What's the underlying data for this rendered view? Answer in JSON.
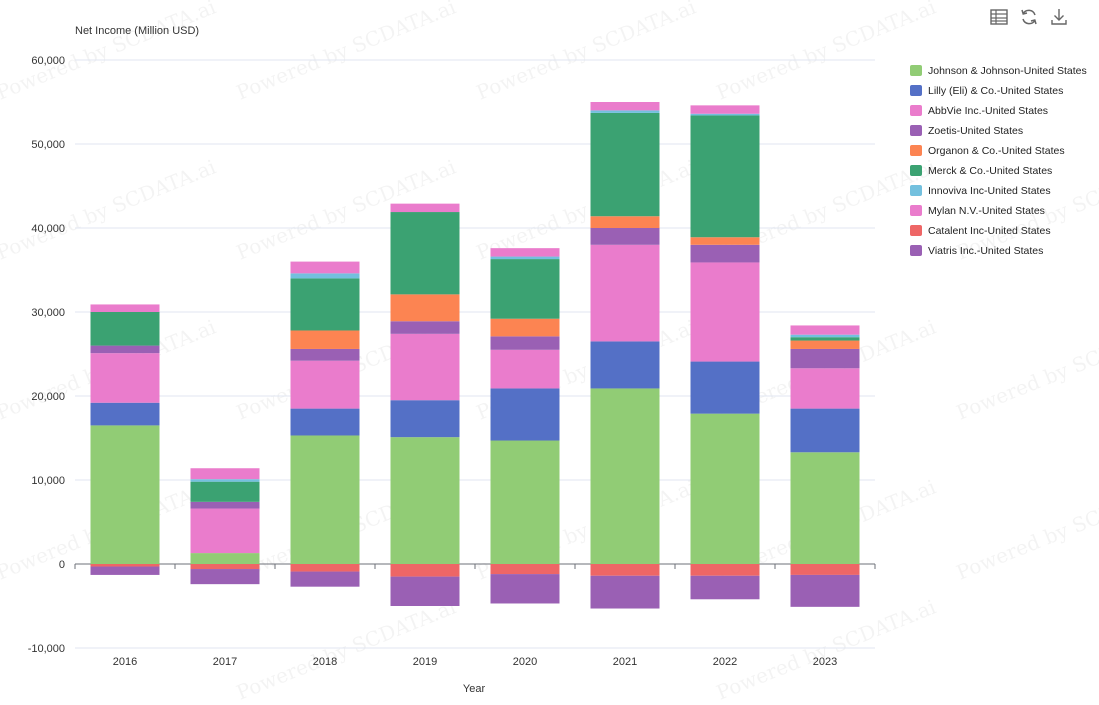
{
  "toolbar": {
    "icons": [
      "table-icon",
      "refresh-icon",
      "download-icon"
    ]
  },
  "watermark": "Powered by SCDATA.ai",
  "chart_data": {
    "type": "bar",
    "stacked": true,
    "ylabel": "Net Income (Million USD)",
    "xlabel": "Year",
    "ylim": [
      -10000,
      60000
    ],
    "yticks": [
      -10000,
      0,
      10000,
      20000,
      30000,
      40000,
      50000,
      60000
    ],
    "ytick_labels": [
      "-10,000",
      "0",
      "10,000",
      "20,000",
      "30,000",
      "40,000",
      "50,000",
      "60,000"
    ],
    "grid": true,
    "legend_position": "top-right",
    "categories": [
      "2016",
      "2017",
      "2018",
      "2019",
      "2020",
      "2021",
      "2022",
      "2023"
    ],
    "series": [
      {
        "name": "Johnson & Johnson-United States",
        "color": "#91cc75",
        "values": [
          16500,
          1300,
          15300,
          15100,
          14700,
          20900,
          17900,
          13300
        ]
      },
      {
        "name": "Lilly (Eli) & Co.-United States",
        "color": "#5470c6",
        "values": [
          2700,
          0,
          3200,
          4400,
          6200,
          5600,
          6200,
          5200
        ]
      },
      {
        "name": "AbbVie Inc.-United States",
        "color": "#ea7ccc",
        "values": [
          5900,
          5300,
          5700,
          7900,
          4600,
          11500,
          11800,
          4800
        ]
      },
      {
        "name": "Zoetis-United States",
        "color": "#9a60b4",
        "values": [
          900,
          800,
          1400,
          1500,
          1600,
          2000,
          2100,
          2300
        ]
      },
      {
        "name": "Organon & Co.-United States",
        "color": "#fc8452",
        "values": [
          0,
          0,
          2200,
          3200,
          2100,
          1400,
          900,
          1000
        ]
      },
      {
        "name": "Merck & Co.-United States",
        "color": "#3ba272",
        "values": [
          4000,
          2400,
          6200,
          9800,
          7100,
          12300,
          14500,
          400
        ]
      },
      {
        "name": "Innoviva Inc-United States",
        "color": "#73c0de",
        "values": [
          0,
          300,
          600,
          0,
          300,
          300,
          200,
          300
        ]
      },
      {
        "name": "Mylan N.V.-United States",
        "color": "#ea7ccc",
        "values": [
          900,
          1300,
          1400,
          1000,
          1000,
          1000,
          1000,
          1100
        ]
      },
      {
        "name": "Catalent Inc-United States",
        "color": "#ee6666",
        "values": [
          -300,
          -600,
          -900,
          -1500,
          -1200,
          -1400,
          -1400,
          -1300
        ]
      },
      {
        "name": "Viatris Inc.-United States",
        "color": "#9a60b4",
        "values": [
          -1000,
          -1800,
          -1800,
          -3500,
          -3500,
          -3900,
          -2800,
          -3800
        ]
      }
    ]
  }
}
